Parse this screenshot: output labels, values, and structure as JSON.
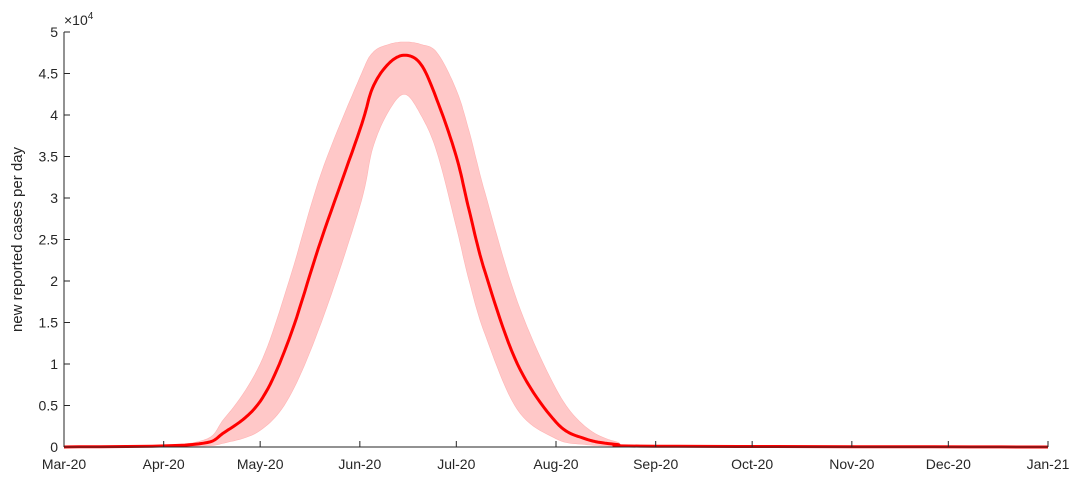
{
  "chart_data": {
    "type": "line",
    "ylabel": "new reported cases per day",
    "xlabel": "",
    "y_exponent_label": {
      "base": "×10",
      "exp": "4"
    },
    "x_range": [
      "2020-03-01",
      "2021-01-01"
    ],
    "ylim": [
      0,
      5
    ],
    "y_ticks": [
      0,
      0.5,
      1,
      1.5,
      2,
      2.5,
      3,
      3.5,
      4,
      4.5,
      5
    ],
    "y_tick_labels": [
      "0",
      "0.5",
      "1",
      "1.5",
      "2",
      "2.5",
      "3",
      "3.5",
      "4",
      "4.5",
      "5"
    ],
    "x_ticks": [
      "2020-03-01",
      "2020-04-01",
      "2020-05-01",
      "2020-06-01",
      "2020-07-01",
      "2020-08-01",
      "2020-09-01",
      "2020-10-01",
      "2020-11-01",
      "2020-12-01",
      "2021-01-01"
    ],
    "x_tick_labels": [
      "Mar-20",
      "Apr-20",
      "May-20",
      "Jun-20",
      "Jul-20",
      "Aug-20",
      "Sep-20",
      "Oct-20",
      "Nov-20",
      "Dec-20",
      "Jan-21"
    ],
    "grid": false,
    "series": [
      {
        "role": "mean",
        "color": "#ff0000",
        "x": [
          "2020-03-01",
          "2020-04-10",
          "2020-04-20",
          "2020-05-01",
          "2020-05-10",
          "2020-05-20",
          "2020-06-01",
          "2020-06-05",
          "2020-06-10",
          "2020-06-15",
          "2020-06-20",
          "2020-06-25",
          "2020-07-01",
          "2020-07-05",
          "2020-07-10",
          "2020-07-20",
          "2020-08-01",
          "2020-08-10",
          "2020-08-20",
          "2020-09-01",
          "2021-01-01"
        ],
        "y": [
          0,
          0.03,
          0.18,
          0.55,
          1.3,
          2.5,
          3.82,
          4.33,
          4.62,
          4.72,
          4.61,
          4.18,
          3.5,
          2.85,
          2.1,
          1.0,
          0.3,
          0.1,
          0.03,
          0.01,
          0
        ]
      },
      {
        "role": "uncertainty_upper",
        "color": "#ffc8c8",
        "x": [
          "2020-03-01",
          "2020-04-10",
          "2020-04-20",
          "2020-05-01",
          "2020-05-10",
          "2020-05-20",
          "2020-06-01",
          "2020-06-05",
          "2020-06-10",
          "2020-06-15",
          "2020-06-20",
          "2020-06-25",
          "2020-07-01",
          "2020-07-05",
          "2020-07-10",
          "2020-07-20",
          "2020-08-01",
          "2020-08-10",
          "2020-08-20",
          "2020-09-01",
          "2021-01-01"
        ],
        "y": [
          0,
          0.05,
          0.35,
          1.0,
          2.0,
          3.3,
          4.45,
          4.75,
          4.85,
          4.88,
          4.85,
          4.75,
          4.3,
          3.8,
          3.05,
          1.75,
          0.7,
          0.25,
          0.06,
          0.02,
          0
        ]
      },
      {
        "role": "uncertainty_lower",
        "color": "#ffc8c8",
        "x": [
          "2020-03-01",
          "2020-04-10",
          "2020-04-20",
          "2020-05-01",
          "2020-05-10",
          "2020-05-20",
          "2020-06-01",
          "2020-06-05",
          "2020-06-10",
          "2020-06-15",
          "2020-06-20",
          "2020-06-25",
          "2020-07-01",
          "2020-07-05",
          "2020-07-10",
          "2020-07-20",
          "2020-08-01",
          "2020-08-10",
          "2020-08-20",
          "2020-09-01",
          "2021-01-01"
        ],
        "y": [
          0,
          0.01,
          0.05,
          0.2,
          0.6,
          1.5,
          2.9,
          3.6,
          4.05,
          4.25,
          4.0,
          3.55,
          2.65,
          2.0,
          1.35,
          0.45,
          0.1,
          0.03,
          0.01,
          0,
          0
        ]
      }
    ]
  }
}
